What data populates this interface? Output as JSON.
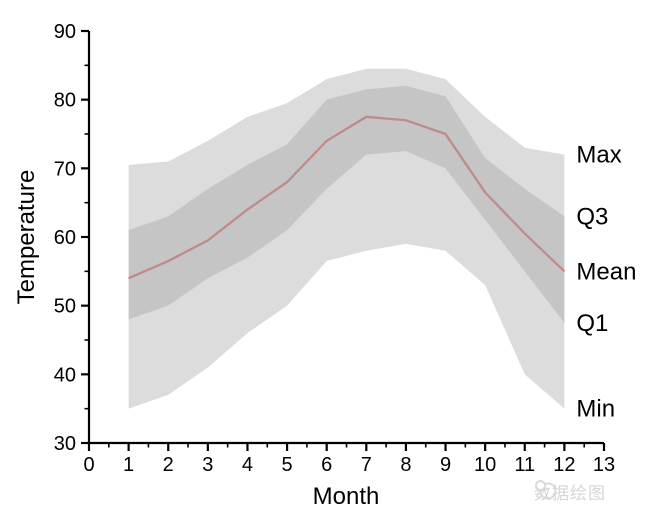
{
  "chart_data": {
    "type": "area",
    "title": "",
    "xlabel": "Month",
    "ylabel": "Temperature",
    "x": [
      1,
      2,
      3,
      4,
      5,
      6,
      7,
      8,
      9,
      10,
      11,
      12
    ],
    "series": [
      {
        "name": "Max",
        "role": "band-outer-top",
        "color": "#dcdcdc",
        "values": [
          70.5,
          71,
          74,
          77.5,
          79.5,
          83,
          84.5,
          84.5,
          83,
          77.5,
          73,
          72
        ]
      },
      {
        "name": "Q3",
        "role": "band-inner-top",
        "color": "#c5c5c5",
        "values": [
          61,
          63,
          67,
          70.5,
          73.5,
          80,
          81.5,
          82,
          80.5,
          71.5,
          67,
          63
        ]
      },
      {
        "name": "Mean",
        "role": "line",
        "color": "#c08a8a",
        "values": [
          54,
          56.5,
          59.5,
          64,
          68,
          74,
          77.5,
          77,
          75,
          66.5,
          60.5,
          55
        ]
      },
      {
        "name": "Q1",
        "role": "band-inner-bottom",
        "color": "#c5c5c5",
        "values": [
          48,
          50,
          54,
          57,
          61,
          67,
          72,
          72.5,
          70,
          62.5,
          55,
          47.5
        ]
      },
      {
        "name": "Min",
        "role": "band-outer-bottom",
        "color": "#dcdcdc",
        "values": [
          35,
          37,
          41,
          46,
          50,
          56.5,
          58,
          59,
          58,
          53,
          40,
          35
        ]
      }
    ],
    "xlim": [
      0,
      13
    ],
    "ylim": [
      30,
      90
    ],
    "x_major_ticks": [
      "0",
      "1",
      "2",
      "3",
      "4",
      "5",
      "6",
      "7",
      "8",
      "9",
      "10",
      "11",
      "12",
      "13"
    ],
    "y_major_ticks": [
      "30",
      "40",
      "50",
      "60",
      "70",
      "80",
      "90"
    ],
    "x_minor_step": 0.5,
    "y_minor_step": 5,
    "grid": false,
    "legend_position": "right-edge-labels"
  },
  "colors": {
    "axis": "#000000",
    "band_outer": "#dcdcdc",
    "band_inner": "#c5c5c5",
    "mean_line": "#c08a8a",
    "watermark": "#d6d6d6"
  },
  "watermark": {
    "text": "数据绘图"
  }
}
